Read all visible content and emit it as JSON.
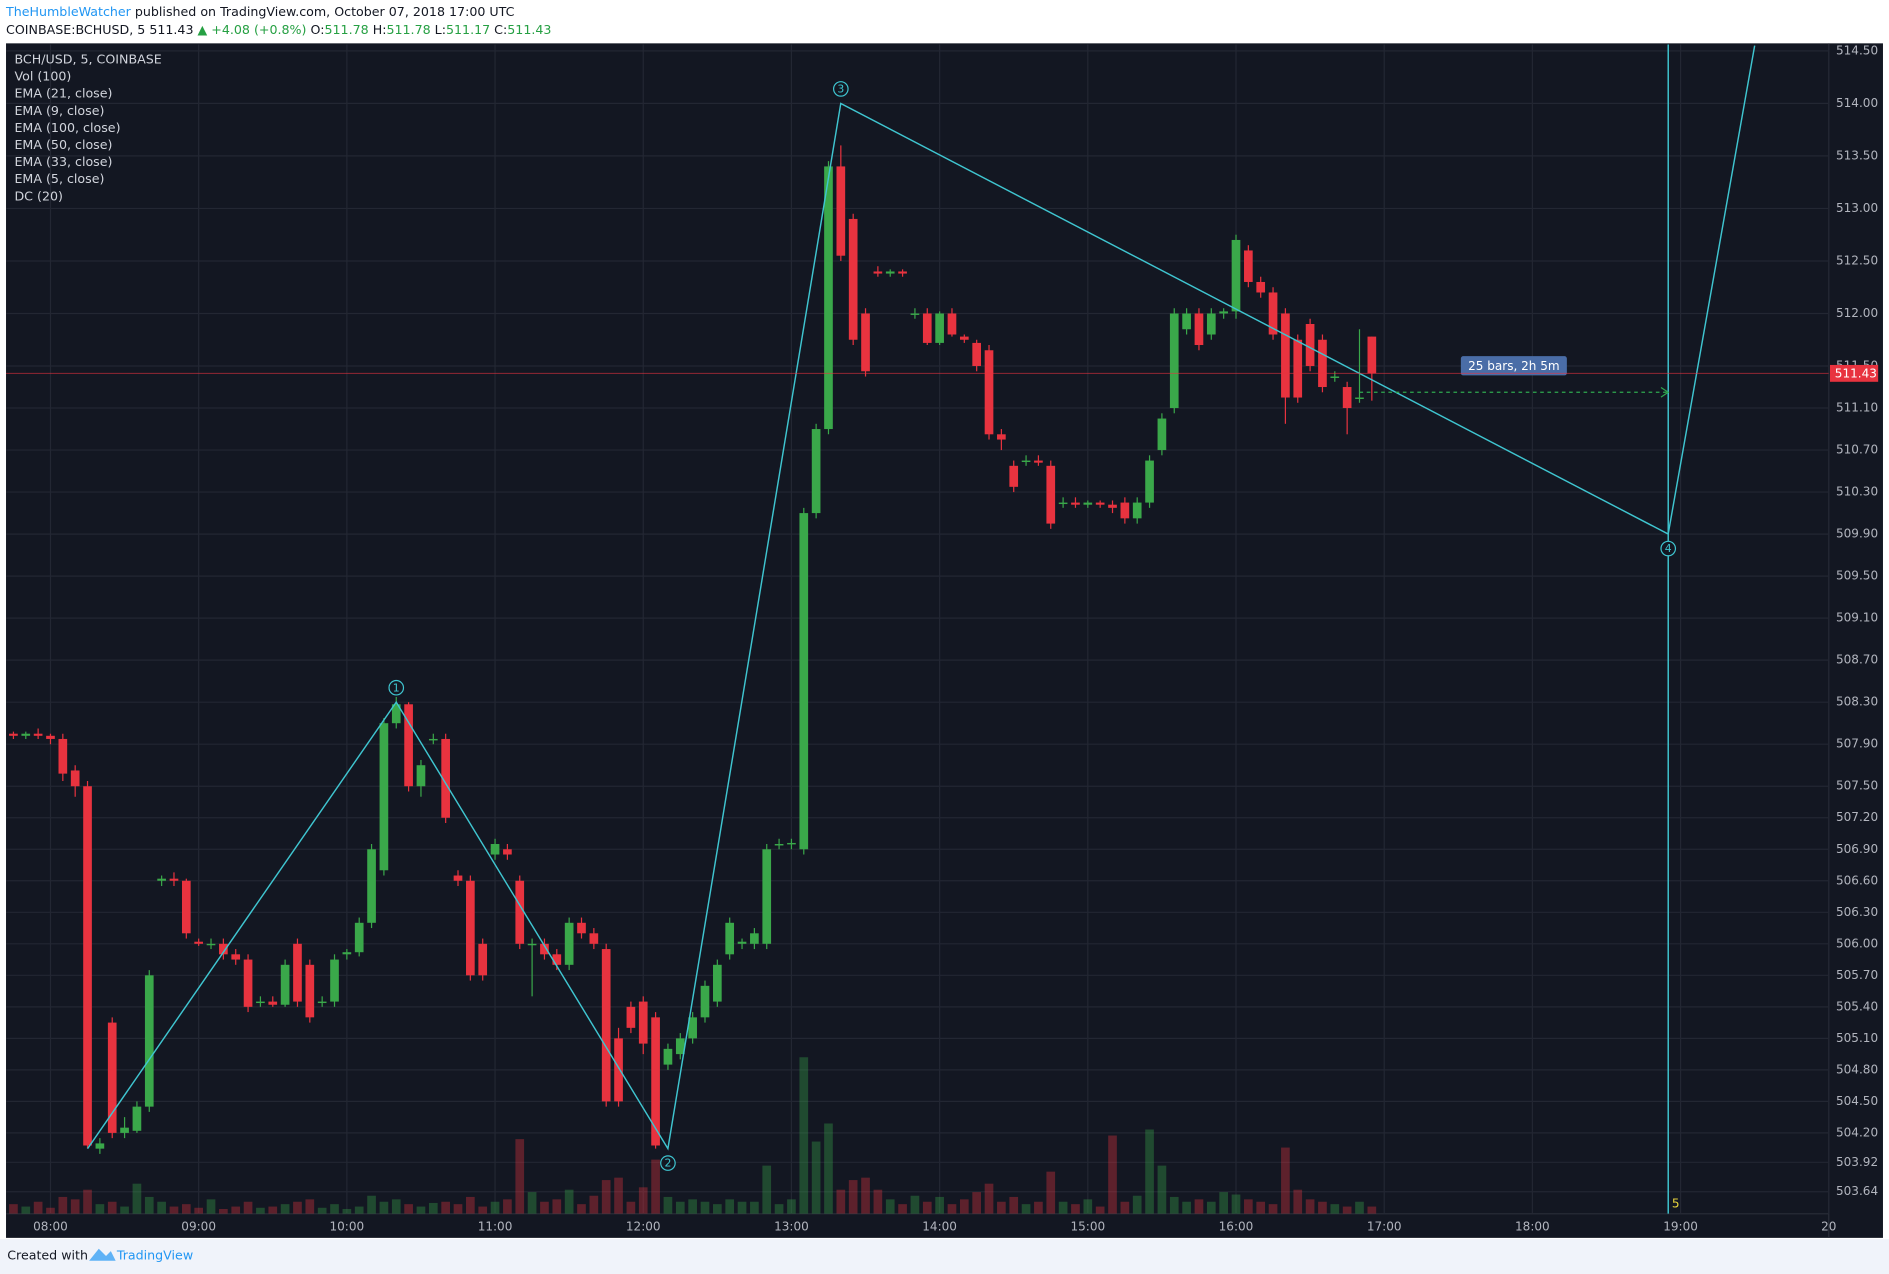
{
  "header": {
    "author": "TheHumbleWatcher",
    "published": "published on TradingView.com, October 07, 2018 17:00 UTC",
    "symbol": "COINBASE:BCHUSD, 5",
    "last": "511.43",
    "change": "▲ +4.08 (+0.8%)",
    "ohlc": [
      {
        "label": "O:",
        "value": "511.78"
      },
      {
        "label": "H:",
        "value": "511.78"
      },
      {
        "label": "L:",
        "value": "511.17"
      },
      {
        "label": "C:",
        "value": "511.43"
      }
    ]
  },
  "footer": {
    "created": "Created with",
    "brand": "TradingView"
  },
  "chart_data": {
    "type": "candlestick",
    "title": "BCH/USD, 5, COINBASE",
    "indicators": [
      "Vol (100)",
      "EMA (21, close)",
      "EMA (9, close)",
      "EMA (100, close)",
      "EMA (50, close)",
      "EMA (33, close)",
      "EMA (5, close)",
      "DC (20)"
    ],
    "up_color": "#3aa84a",
    "down_color": "#e8333f",
    "grid": true,
    "xlim": [
      "07:42",
      "20:00"
    ],
    "xticks": [
      "08:00",
      "09:00",
      "10:00",
      "11:00",
      "12:00",
      "13:00",
      "14:00",
      "15:00",
      "16:00",
      "17:00",
      "18:00",
      "19:00",
      {
        "value": "20:00",
        "label": "20"
      }
    ],
    "ylim": [
      503.43,
      514.56
    ],
    "yticks": [
      {
        "value": 514.5,
        "label": "514.50"
      },
      {
        "value": 514,
        "label": "514.00"
      },
      {
        "value": 513.5,
        "label": "513.50"
      },
      {
        "value": 513,
        "label": "513.00"
      },
      {
        "value": 512.5,
        "label": "512.50"
      },
      {
        "value": 512,
        "label": "512.00"
      },
      {
        "value": 511.5,
        "label": "511.50"
      },
      {
        "value": 511.1,
        "label": "511.10"
      },
      {
        "value": 510.7,
        "label": "510.70"
      },
      {
        "value": 510.3,
        "label": "510.30"
      },
      {
        "value": 509.9,
        "label": "509.90"
      },
      {
        "value": 509.5,
        "label": "509.50"
      },
      {
        "value": 509.1,
        "label": "509.10"
      },
      {
        "value": 508.7,
        "label": "508.70"
      },
      {
        "value": 508.3,
        "label": "508.30"
      },
      {
        "value": 507.9,
        "label": "507.90"
      },
      {
        "value": 507.5,
        "label": "507.50"
      },
      {
        "value": 507.2,
        "label": "507.20"
      },
      {
        "value": 506.9,
        "label": "506.90"
      },
      {
        "value": 506.6,
        "label": "506.60"
      },
      {
        "value": 506.3,
        "label": "506.30"
      },
      {
        "value": 506,
        "label": "506.00"
      },
      {
        "value": 505.7,
        "label": "505.70"
      },
      {
        "value": 505.4,
        "label": "505.40"
      },
      {
        "value": 505.1,
        "label": "505.10"
      },
      {
        "value": 504.8,
        "label": "504.80"
      },
      {
        "value": 504.5,
        "label": "504.50"
      },
      {
        "value": 504.2,
        "label": "504.20"
      },
      503.92,
      503.64
    ],
    "x": [
      "07:45",
      "07:50",
      "07:55",
      "08:00",
      "08:05",
      "08:10",
      "08:15",
      "08:20",
      "08:25",
      "08:30",
      "08:35",
      "08:40",
      "08:45",
      "08:50",
      "08:55",
      "09:00",
      "09:05",
      "09:10",
      "09:15",
      "09:20",
      "09:25",
      "09:30",
      "09:35",
      "09:40",
      "09:45",
      "09:50",
      "09:55",
      "10:00",
      "10:05",
      "10:10",
      "10:15",
      "10:20",
      "10:25",
      "10:30",
      "10:35",
      "10:40",
      "10:45",
      "10:50",
      "10:55",
      "11:00",
      "11:05",
      "11:10",
      "11:15",
      "11:20",
      "11:25",
      "11:30",
      "11:35",
      "11:40",
      "11:45",
      "11:50",
      "11:55",
      "12:00",
      "12:05",
      "12:10",
      "12:15",
      "12:20",
      "12:25",
      "12:30",
      "12:35",
      "12:40",
      "12:45",
      "12:50",
      "12:55",
      "13:00",
      "13:05",
      "13:10",
      "13:15",
      "13:20",
      "13:25",
      "13:30",
      "13:35",
      "13:40",
      "13:45",
      "13:50",
      "13:55",
      "14:00",
      "14:05",
      "14:10",
      "14:15",
      "14:20",
      "14:25",
      "14:30",
      "14:35",
      "14:40",
      "14:45",
      "14:50",
      "14:55",
      "15:00",
      "15:05",
      "15:10",
      "15:15",
      "15:20",
      "15:25",
      "15:30",
      "15:35",
      "15:40",
      "15:45",
      "15:50",
      "15:55",
      "16:00",
      "16:05",
      "16:10",
      "16:15",
      "16:20",
      "16:25",
      "16:30",
      "16:35",
      "16:40",
      "16:45",
      "16:50",
      "16:55"
    ],
    "open": [
      508.0,
      507.98,
      508.0,
      507.98,
      507.95,
      507.65,
      507.5,
      504.05,
      505.25,
      504.2,
      504.22,
      504.45,
      506.6,
      506.62,
      506.6,
      506.02,
      506.0,
      506.0,
      505.9,
      505.85,
      505.45,
      505.45,
      505.42,
      506.0,
      505.8,
      505.45,
      505.45,
      505.9,
      505.92,
      506.2,
      506.7,
      508.1,
      508.28,
      507.5,
      507.95,
      507.95,
      506.65,
      506.6,
      506.0,
      506.85,
      506.9,
      506.6,
      506.0,
      506.0,
      505.9,
      505.8,
      506.2,
      506.1,
      505.95,
      505.1,
      505.4,
      505.45,
      505.3,
      504.85,
      504.95,
      505.1,
      505.3,
      505.45,
      505.9,
      506.0,
      506.0,
      506.0,
      506.95,
      506.95,
      506.9,
      510.1,
      510.9,
      513.4,
      512.9,
      512.0,
      512.4,
      512.38,
      512.4,
      512.0,
      512.0,
      511.72,
      512.0,
      511.78,
      511.72,
      511.65,
      510.85,
      510.55,
      510.6,
      510.6,
      510.55,
      510.2,
      510.2,
      510.18,
      510.2,
      510.18,
      510.2,
      510.05,
      510.2,
      510.7,
      511.1,
      511.85,
      512.0,
      511.8,
      512.0,
      512.02,
      512.6,
      512.3,
      512.2,
      512.0,
      511.75,
      511.9,
      511.75,
      511.4,
      511.3,
      511.2,
      511.78
    ],
    "high": [
      508.02,
      508.02,
      508.05,
      508.0,
      508.0,
      507.7,
      507.55,
      504.15,
      505.3,
      504.35,
      504.5,
      505.75,
      506.65,
      506.68,
      506.62,
      506.05,
      506.05,
      506.05,
      505.95,
      505.9,
      505.5,
      505.5,
      505.85,
      506.05,
      505.85,
      505.5,
      505.9,
      505.95,
      506.25,
      506.95,
      508.15,
      508.35,
      508.3,
      507.75,
      508.0,
      508.0,
      506.7,
      506.65,
      506.05,
      507.0,
      506.95,
      506.65,
      506.05,
      506.05,
      505.95,
      506.25,
      506.25,
      506.15,
      506.0,
      505.2,
      505.45,
      505.5,
      505.35,
      505.05,
      505.15,
      505.35,
      505.65,
      505.85,
      506.25,
      506.05,
      506.15,
      506.95,
      507.0,
      507.0,
      510.15,
      510.95,
      513.45,
      513.6,
      512.95,
      512.05,
      512.45,
      512.42,
      512.42,
      512.05,
      512.05,
      512.02,
      512.05,
      511.8,
      511.75,
      511.7,
      510.9,
      510.6,
      510.65,
      510.65,
      510.6,
      510.25,
      510.25,
      510.22,
      510.22,
      510.22,
      510.25,
      510.25,
      510.65,
      511.05,
      512.05,
      512.05,
      512.05,
      512.05,
      512.05,
      512.75,
      512.65,
      512.35,
      512.25,
      512.05,
      511.8,
      511.95,
      511.8,
      511.45,
      511.35,
      511.85,
      511.78
    ],
    "low": [
      507.95,
      507.95,
      507.95,
      507.9,
      507.55,
      507.4,
      504.05,
      504.0,
      504.15,
      504.15,
      504.2,
      504.4,
      506.55,
      506.55,
      506.05,
      505.98,
      505.95,
      505.85,
      505.8,
      505.35,
      505.4,
      505.4,
      505.4,
      505.4,
      505.25,
      505.4,
      505.4,
      505.85,
      505.88,
      506.15,
      506.65,
      508.05,
      507.45,
      507.4,
      507.9,
      507.15,
      506.55,
      505.65,
      505.65,
      506.8,
      506.8,
      505.95,
      505.5,
      505.85,
      505.75,
      505.75,
      506.05,
      505.95,
      504.45,
      504.45,
      505.15,
      504.95,
      504.05,
      504.8,
      504.9,
      505.05,
      505.25,
      505.4,
      505.85,
      505.95,
      505.95,
      505.95,
      506.9,
      506.9,
      506.85,
      510.05,
      510.85,
      512.5,
      511.7,
      511.4,
      512.35,
      512.35,
      512.35,
      511.95,
      511.7,
      511.7,
      511.78,
      511.72,
      511.45,
      510.8,
      510.7,
      510.3,
      510.55,
      510.55,
      509.95,
      510.15,
      510.15,
      510.15,
      510.15,
      510.1,
      510.0,
      510.0,
      510.15,
      510.65,
      511.05,
      511.8,
      511.65,
      511.75,
      511.95,
      511.95,
      512.25,
      512.15,
      511.75,
      510.95,
      511.15,
      511.45,
      511.25,
      511.35,
      510.85,
      511.15,
      511.17
    ],
    "close": [
      507.98,
      508.0,
      507.98,
      507.95,
      507.62,
      507.5,
      504.08,
      504.1,
      504.2,
      504.25,
      504.45,
      505.7,
      506.62,
      506.6,
      506.1,
      506.0,
      506.0,
      505.9,
      505.85,
      505.4,
      505.45,
      505.42,
      505.8,
      505.45,
      505.3,
      505.45,
      505.85,
      505.92,
      506.2,
      506.9,
      508.1,
      508.28,
      507.5,
      507.7,
      507.95,
      507.2,
      506.6,
      505.7,
      505.7,
      506.95,
      506.85,
      506.0,
      506.0,
      505.9,
      505.8,
      506.2,
      506.1,
      506.0,
      504.5,
      504.5,
      505.2,
      505.05,
      504.08,
      505.0,
      505.1,
      505.3,
      505.6,
      505.8,
      506.2,
      506.02,
      506.1,
      506.9,
      506.95,
      506.96,
      510.1,
      510.9,
      513.4,
      512.55,
      511.75,
      511.45,
      512.38,
      512.4,
      512.38,
      512.0,
      511.72,
      512.0,
      511.8,
      511.75,
      511.5,
      510.85,
      510.8,
      510.35,
      510.6,
      510.58,
      510.0,
      510.2,
      510.18,
      510.2,
      510.18,
      510.15,
      510.05,
      510.2,
      510.6,
      511.0,
      512.0,
      512.0,
      511.7,
      512.0,
      512.02,
      512.7,
      512.3,
      512.2,
      511.8,
      511.2,
      511.2,
      511.5,
      511.3,
      511.4,
      511.1,
      511.2,
      511.43
    ],
    "volume": [
      8,
      6,
      10,
      5,
      14,
      12,
      20,
      8,
      10,
      6,
      25,
      14,
      10,
      6,
      8,
      5,
      12,
      4,
      6,
      10,
      5,
      6,
      8,
      10,
      12,
      5,
      8,
      4,
      6,
      15,
      10,
      12,
      8,
      6,
      9,
      10,
      8,
      14,
      6,
      10,
      12,
      62,
      18,
      10,
      12,
      20,
      8,
      15,
      28,
      30,
      10,
      22,
      45,
      14,
      10,
      12,
      10,
      8,
      12,
      10,
      10,
      40,
      8,
      12,
      130,
      60,
      75,
      20,
      28,
      30,
      20,
      12,
      8,
      15,
      10,
      14,
      8,
      12,
      18,
      25,
      10,
      14,
      8,
      10,
      35,
      10,
      8,
      12,
      6,
      65,
      10,
      15,
      70,
      40,
      14,
      10,
      12,
      10,
      18,
      16,
      12,
      10,
      8,
      55,
      20,
      12,
      10,
      8,
      6,
      10,
      6
    ],
    "wave": {
      "x": [
        "08:15",
        "10:20",
        "12:10",
        "13:20",
        "18:55",
        "19:30"
      ],
      "values": [
        504.05,
        508.3,
        504.05,
        514.0,
        509.9,
        514.55
      ],
      "labels": [
        null,
        "1",
        "2",
        "3",
        "4",
        "5"
      ],
      "color": "#3fc5d0"
    },
    "vline_label": "5",
    "measure": {
      "label": "25 bars, 2h 5m",
      "from": "16:50",
      "to": "18:55",
      "price": 511.25,
      "color": "#2fa84f"
    }
  }
}
